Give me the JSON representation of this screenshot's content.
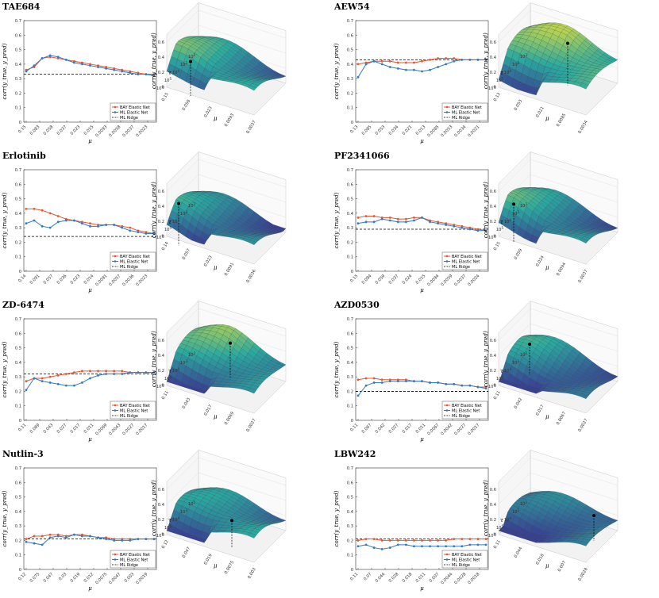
{
  "figure": {
    "ylabel": "corr(y_true, y_pred)",
    "xlabel": "μ",
    "tau_label": "τ",
    "legend": [
      "BAY Elastic Net",
      "ML Elastic Net",
      "ML Ridge"
    ],
    "y_ticks": [
      "0",
      "0.1",
      "0.2",
      "0.3",
      "0.4",
      "0.5",
      "0.6",
      "0.7"
    ],
    "z_ticks": [
      "0",
      "0.2",
      "0.4",
      "0.6"
    ],
    "tau_ticks": [
      "10^2",
      "10^3",
      "10^4",
      "10^5",
      "10^6"
    ]
  },
  "colors": {
    "bay": "#e4572e",
    "ml": "#2e7bc4",
    "ridge": "#000000",
    "surface_low": "#3b2d8f",
    "surface_mid": "#2aa9a0",
    "surface_high": "#f5e52f"
  },
  "chart_data": [
    {
      "type": "line",
      "title": "TAE684",
      "mu_ticks": [
        "0.15",
        "0.083",
        "0.058",
        "0.037",
        "0.023",
        "0.015",
        "0.0093",
        "0.0058",
        "0.0037",
        "0.0023"
      ],
      "ylim": [
        0,
        0.7
      ],
      "series": [
        {
          "name": "BAY Elastic Net",
          "values": [
            0.36,
            0.38,
            0.44,
            0.45,
            0.44,
            0.43,
            0.42,
            0.41,
            0.4,
            0.39,
            0.38,
            0.37,
            0.36,
            0.35,
            0.34,
            0.33,
            0.33
          ]
        },
        {
          "name": "ML Elastic Net",
          "values": [
            0.35,
            0.39,
            0.44,
            0.46,
            0.45,
            0.43,
            0.41,
            0.4,
            0.39,
            0.38,
            0.37,
            0.36,
            0.35,
            0.34,
            0.33,
            0.33,
            0.32
          ]
        }
      ],
      "ridge": 0.33,
      "mu_3d_ticks": [
        "0.15",
        "0.058",
        "0.023",
        "0.0093",
        "0.0037"
      ],
      "surface_peak": [
        0.2,
        0.8
      ],
      "surface_base": 0.45,
      "marker_value": 0.33
    },
    {
      "type": "line",
      "title": "AEW54",
      "mu_ticks": [
        "0.13",
        "0.085",
        "0.053",
        "0.034",
        "0.021",
        "0.013",
        "0.0085",
        "0.0053",
        "0.0034",
        "0.0021"
      ],
      "ylim": [
        0,
        0.7
      ],
      "series": [
        {
          "name": "BAY Elastic Net",
          "values": [
            0.4,
            0.41,
            0.42,
            0.42,
            0.42,
            0.41,
            0.41,
            0.41,
            0.42,
            0.43,
            0.44,
            0.44,
            0.44,
            0.43,
            0.43,
            0.43,
            0.43
          ]
        },
        {
          "name": "ML Elastic Net",
          "values": [
            0.31,
            0.4,
            0.42,
            0.4,
            0.38,
            0.37,
            0.36,
            0.36,
            0.35,
            0.36,
            0.38,
            0.4,
            0.42,
            0.43,
            0.43,
            0.43,
            0.43
          ]
        }
      ],
      "ridge": 0.43,
      "mu_3d_ticks": [
        "0.13",
        "0.053",
        "0.021",
        "0.0085",
        "0.0034"
      ],
      "surface_peak": [
        0.5,
        0.2
      ],
      "surface_base": 0.55,
      "marker_value": 0.43
    },
    {
      "type": "line",
      "title": "Erlotinib",
      "mu_ticks": [
        "0.14",
        "0.091",
        "0.057",
        "0.036",
        "0.023",
        "0.014",
        "0.0091",
        "0.0057",
        "0.0036",
        "0.0023"
      ],
      "ylim": [
        0,
        0.7
      ],
      "series": [
        {
          "name": "BAY Elastic Net",
          "values": [
            0.43,
            0.43,
            0.42,
            0.4,
            0.38,
            0.36,
            0.35,
            0.34,
            0.33,
            0.32,
            0.32,
            0.32,
            0.31,
            0.3,
            0.28,
            0.27,
            0.26
          ]
        },
        {
          "name": "ML Elastic Net",
          "values": [
            0.33,
            0.35,
            0.31,
            0.3,
            0.34,
            0.35,
            0.35,
            0.33,
            0.31,
            0.31,
            0.32,
            0.32,
            0.3,
            0.28,
            0.27,
            0.26,
            0.26
          ]
        }
      ],
      "ridge": 0.24,
      "mu_3d_ticks": [
        "0.14",
        "0.057",
        "0.023",
        "0.0091",
        "0.0036"
      ],
      "surface_peak": [
        0.1,
        0.9
      ],
      "surface_base": 0.35,
      "marker_value": 0.43
    },
    {
      "type": "line",
      "title": "PF2341066",
      "mu_ticks": [
        "0.15",
        "0.094",
        "0.059",
        "0.037",
        "0.024",
        "0.015",
        "0.0094",
        "0.0059",
        "0.0037",
        "0.0024"
      ],
      "ylim": [
        0,
        0.7
      ],
      "series": [
        {
          "name": "BAY Elastic Net",
          "values": [
            0.37,
            0.38,
            0.38,
            0.37,
            0.37,
            0.36,
            0.36,
            0.37,
            0.37,
            0.35,
            0.34,
            0.33,
            0.32,
            0.31,
            0.3,
            0.29,
            0.28
          ]
        },
        {
          "name": "ML Elastic Net",
          "values": [
            0.33,
            0.34,
            0.34,
            0.36,
            0.35,
            0.34,
            0.34,
            0.35,
            0.37,
            0.34,
            0.33,
            0.32,
            0.31,
            0.3,
            0.29,
            0.28,
            0.28
          ]
        }
      ],
      "ridge": 0.29,
      "mu_3d_ticks": [
        "0.15",
        "0.059",
        "0.024",
        "0.0094",
        "0.0037"
      ],
      "surface_peak": [
        0.1,
        0.8
      ],
      "surface_base": 0.4,
      "marker_value": 0.38
    },
    {
      "type": "line",
      "title": "ZD-6474",
      "mu_ticks": [
        "0.11",
        "0.069",
        "0.043",
        "0.027",
        "0.017",
        "0.011",
        "0.0069",
        "0.0043",
        "0.0027",
        "0.0017"
      ],
      "ylim": [
        0,
        0.7
      ],
      "series": [
        {
          "name": "BAY Elastic Net",
          "values": [
            0.27,
            0.29,
            0.29,
            0.3,
            0.31,
            0.32,
            0.33,
            0.34,
            0.34,
            0.34,
            0.34,
            0.34,
            0.34,
            0.33,
            0.33,
            0.33,
            0.33
          ]
        },
        {
          "name": "ML Elastic Net",
          "values": [
            0.21,
            0.29,
            0.27,
            0.26,
            0.25,
            0.24,
            0.24,
            0.26,
            0.29,
            0.31,
            0.32,
            0.32,
            0.32,
            0.33,
            0.33,
            0.33,
            0.33
          ]
        }
      ],
      "ridge": 0.32,
      "mu_3d_ticks": [
        "0.11",
        "0.043",
        "0.017",
        "0.0069",
        "0.0027"
      ],
      "surface_peak": [
        0.4,
        0.1
      ],
      "surface_base": 0.45,
      "marker_value": 0.33
    },
    {
      "type": "line",
      "title": "AZD0530",
      "mu_ticks": [
        "0.11",
        "0.067",
        "0.042",
        "0.027",
        "0.017",
        "0.011",
        "0.0067",
        "0.0042",
        "0.0027",
        "0.0017"
      ],
      "ylim": [
        0,
        0.7
      ],
      "series": [
        {
          "name": "BAY Elastic Net",
          "values": [
            0.28,
            0.29,
            0.29,
            0.28,
            0.28,
            0.28,
            0.28,
            0.27,
            0.27,
            0.26,
            0.26,
            0.25,
            0.25,
            0.24,
            0.24,
            0.23,
            0.23
          ]
        },
        {
          "name": "ML Elastic Net",
          "values": [
            0.17,
            0.24,
            0.26,
            0.26,
            0.27,
            0.27,
            0.27,
            0.27,
            0.27,
            0.26,
            0.26,
            0.25,
            0.25,
            0.24,
            0.24,
            0.23,
            0.22
          ]
        }
      ],
      "ridge": 0.2,
      "mu_3d_ticks": [
        "0.11",
        "0.042",
        "0.017",
        "0.0067",
        "0.0027"
      ],
      "surface_peak": [
        0.1,
        0.3
      ],
      "surface_base": 0.3,
      "marker_value": 0.29
    },
    {
      "type": "line",
      "title": "Nutlin-3",
      "mu_ticks": [
        "0.12",
        "0.075",
        "0.047",
        "0.03",
        "0.019",
        "0.012",
        "0.0075",
        "0.0047",
        "0.003",
        "0.0019"
      ],
      "ylim": [
        0,
        0.7
      ],
      "series": [
        {
          "name": "BAY Elastic Net",
          "values": [
            0.21,
            0.23,
            0.23,
            0.24,
            0.24,
            0.23,
            0.24,
            0.24,
            0.23,
            0.22,
            0.22,
            0.21,
            0.21,
            0.21,
            0.21,
            0.21,
            0.21
          ]
        },
        {
          "name": "ML Elastic Net",
          "values": [
            0.19,
            0.18,
            0.17,
            0.22,
            0.23,
            0.22,
            0.24,
            0.23,
            0.23,
            0.22,
            0.21,
            0.2,
            0.2,
            0.2,
            0.21,
            0.21,
            0.21
          ]
        }
      ],
      "ridge": 0.21,
      "mu_3d_ticks": [
        "0.12",
        "0.047",
        "0.019",
        "0.0075",
        "0.003"
      ],
      "surface_peak": [
        0.6,
        0.6
      ],
      "surface_base": 0.35,
      "marker_value": 0.24
    },
    {
      "type": "line",
      "title": "LBW242",
      "mu_ticks": [
        "0.11",
        "0.07",
        "0.044",
        "0.028",
        "0.018",
        "0.011",
        "0.007",
        "0.0044",
        "0.0028",
        "0.0018"
      ],
      "ylim": [
        0,
        0.7
      ],
      "series": [
        {
          "name": "BAY Elastic Net",
          "values": [
            0.2,
            0.21,
            0.21,
            0.2,
            0.2,
            0.2,
            0.2,
            0.2,
            0.2,
            0.2,
            0.2,
            0.2,
            0.21,
            0.21,
            0.21,
            0.21,
            0.21
          ]
        },
        {
          "name": "ML Elastic Net",
          "values": [
            0.16,
            0.17,
            0.15,
            0.14,
            0.15,
            0.17,
            0.17,
            0.16,
            0.16,
            0.16,
            0.16,
            0.16,
            0.16,
            0.16,
            0.17,
            0.17,
            0.17
          ]
        }
      ],
      "ridge": 0.21,
      "mu_3d_ticks": [
        "0.11",
        "0.044",
        "0.018",
        "0.007",
        "0.0028"
      ],
      "surface_peak": [
        0.8,
        0.2
      ],
      "surface_base": 0.25,
      "marker_value": 0.21
    }
  ]
}
